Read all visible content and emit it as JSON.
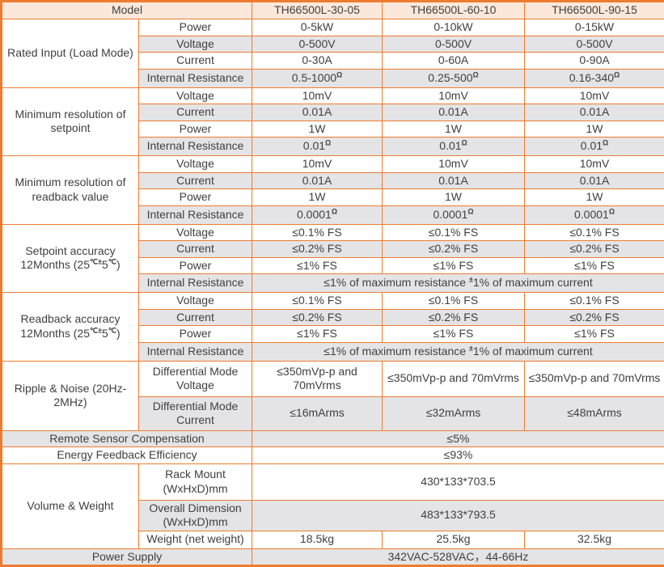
{
  "table": {
    "header": {
      "model_label": "Model",
      "models": [
        "TH66500L-30-05",
        "TH66500L-60-10",
        "TH66500L-90-15"
      ]
    },
    "sections": [
      {
        "label": "Rated Input (Load Mode)",
        "rows": [
          {
            "param": "Power",
            "values": [
              "0-5kW",
              "0-10kW",
              "0-15kW"
            ]
          },
          {
            "param": "Voltage",
            "values": [
              "0-500V",
              "0-500V",
              "0-500V"
            ]
          },
          {
            "param": "Current",
            "values": [
              "0-30A",
              "0-60A",
              "0-90A"
            ]
          },
          {
            "param": "Internal Resistance",
            "values": [
              "0.5-1000^Ω^",
              "0.25-500^Ω^",
              "0.16-340^Ω^"
            ]
          }
        ]
      },
      {
        "label": "Minimum resolution of setpoint",
        "rows": [
          {
            "param": "Voltage",
            "values": [
              "10mV",
              "10mV",
              "10mV"
            ]
          },
          {
            "param": "Current",
            "values": [
              "0.01A",
              "0.01A",
              "0.01A"
            ]
          },
          {
            "param": "Power",
            "values": [
              "1W",
              "1W",
              "1W"
            ]
          },
          {
            "param": "Internal Resistance",
            "values": [
              "0.01^Ω^",
              "0.01^Ω^",
              "0.01^Ω^"
            ]
          }
        ]
      },
      {
        "label": "Minimum resolution of readback value",
        "rows": [
          {
            "param": "Voltage",
            "values": [
              "10mV",
              "10mV",
              "10mV"
            ]
          },
          {
            "param": "Current",
            "values": [
              "0.01A",
              "0.01A",
              "0.01A"
            ]
          },
          {
            "param": "Power",
            "values": [
              "1W",
              "1W",
              "1W"
            ]
          },
          {
            "param": "Internal Resistance",
            "values": [
              "0.0001^Ω^",
              "0.0001^Ω^",
              "0.0001^Ω^"
            ]
          }
        ]
      },
      {
        "label": "Setpoint accuracy 12Months (25^℃±^5^℃^)",
        "rows": [
          {
            "param": "Voltage",
            "values": [
              "≤0.1% FS",
              "≤0.1% FS",
              "≤0.1% FS"
            ]
          },
          {
            "param": "Current",
            "values": [
              "≤0.2% FS",
              "≤0.2% FS",
              "≤0.2% FS"
            ]
          },
          {
            "param": "Power",
            "values": [
              "≤1% FS",
              "≤1% FS",
              "≤1% FS"
            ]
          },
          {
            "param": "Internal Resistance",
            "merged": "≤1% of maximum resistance ^±^1% of maximum current"
          }
        ]
      },
      {
        "label": "Readback accuracy 12Months (25^℃±^5^℃^)",
        "rows": [
          {
            "param": "Voltage",
            "values": [
              "≤0.1% FS",
              "≤0.1% FS",
              "≤0.1% FS"
            ]
          },
          {
            "param": "Current",
            "values": [
              "≤0.2% FS",
              "≤0.2% FS",
              "≤0.2% FS"
            ]
          },
          {
            "param": "Power",
            "values": [
              "≤1% FS",
              "≤1% FS",
              "≤1% FS"
            ]
          },
          {
            "param": "Internal Resistance",
            "merged": "≤1% of maximum resistance ^±^1% of maximum current"
          }
        ]
      },
      {
        "label": "Ripple & Noise (20Hz-2MHz)",
        "rows": [
          {
            "param": "Differential Mode Voltage",
            "values": [
              "≤350mVp-p and 70mVrms",
              "≤350mVp-p and 70mVrms",
              "≤350mVp-p and 70mVrms"
            ]
          },
          {
            "param": "Differential Mode Current",
            "values": [
              "≤16mArms",
              "≤32mArms",
              "≤48mArms"
            ]
          }
        ]
      },
      {
        "label": "Remote Sensor Compensation",
        "merged": "≤5%"
      },
      {
        "label": "Energy Feedback Efficiency",
        "merged": "≤93%"
      },
      {
        "label": "Volume & Weight",
        "rows": [
          {
            "param": "Rack Mount (WxHxD)mm",
            "merged": "430*133*703.5"
          },
          {
            "param": "Overall Dimension (WxHxD)mm",
            "merged": "483*133*793.5"
          },
          {
            "param": "Weight (net weight)",
            "values": [
              "18.5kg",
              "25.5kg",
              "32.5kg"
            ]
          }
        ]
      },
      {
        "label": "Power Supply",
        "merged": "342VAC-528VAC，44-66Hz"
      }
    ],
    "colors": {
      "grid_orange": "#ed7c31",
      "header_fill": "#fce8db",
      "shaded_row": "#e4e4e6",
      "text": "#3f3f3f"
    }
  }
}
